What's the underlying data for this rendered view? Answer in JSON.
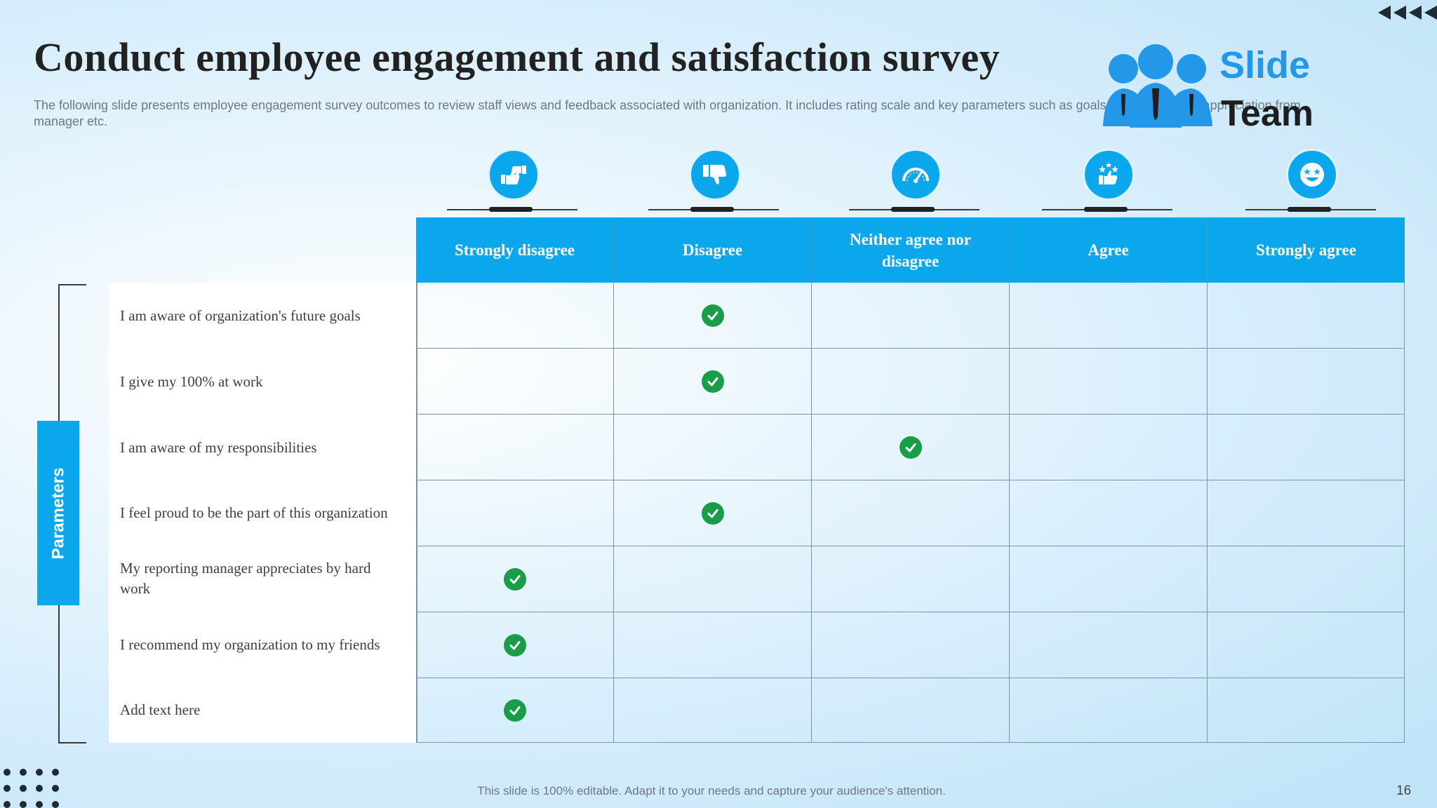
{
  "slide": {
    "title": "Conduct employee engagement and satisfaction survey",
    "subtitle": "The following slide presents employee engagement survey outcomes to review staff views and feedback associated with organization. It includes rating scale and key parameters such as goals, responsibilities, appreciation from manager etc.",
    "footer_note": "This slide is 100% editable. Adapt it to your needs and capture your audience's attention.",
    "page_number": "16"
  },
  "logo": {
    "line1": "Slide",
    "line2": "Team"
  },
  "colors": {
    "accent": "#0aa7ec",
    "check": "#1a9d48",
    "title": "#222222",
    "logo_blue": "#2398e8"
  },
  "parameters_label": "Parameters",
  "scale": [
    {
      "label": "Strongly disagree",
      "icon": "thumbs-up-down-icon"
    },
    {
      "label": "Disagree",
      "icon": "thumbs-down-icon"
    },
    {
      "label": "Neither agree nor disagree",
      "icon": "gauge-icon"
    },
    {
      "label": "Agree",
      "icon": "thumbs-up-stars-icon"
    },
    {
      "label": "Strongly agree",
      "icon": "star-eyes-face-icon"
    }
  ],
  "rows": [
    {
      "parameter": "I am aware of organization's future goals",
      "selected": 1
    },
    {
      "parameter": "I give my 100% at work",
      "selected": 1
    },
    {
      "parameter": "I am aware of my responsibilities",
      "selected": 2
    },
    {
      "parameter": "I feel proud to be the part of this organization",
      "selected": 1
    },
    {
      "parameter": "My reporting manager appreciates by hard work",
      "selected": 0
    },
    {
      "parameter": "I recommend my organization to my friends",
      "selected": 0
    },
    {
      "parameter": "Add text here",
      "selected": 0
    }
  ]
}
